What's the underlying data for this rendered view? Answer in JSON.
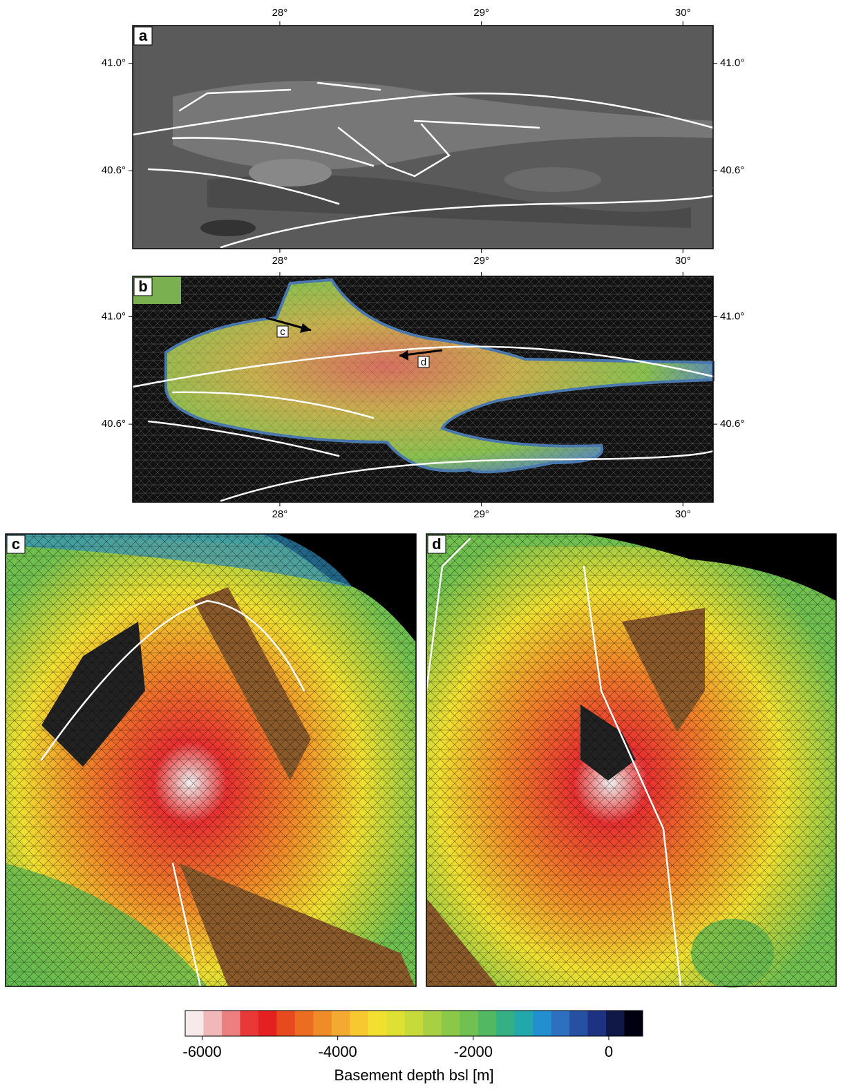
{
  "panels": [
    {
      "label": "a",
      "xlim": [
        27.27,
        30.15
      ],
      "ylim": [
        40.31,
        41.14
      ],
      "xticks": [
        {
          "value": 28,
          "label": "28°"
        },
        {
          "value": 29,
          "label": "29°"
        },
        {
          "value": 30,
          "label": "30°"
        }
      ],
      "yticks": [
        {
          "value": 41.0,
          "label": "41.0°"
        },
        {
          "value": 40.6,
          "label": "40.6°"
        }
      ]
    },
    {
      "label": "b",
      "xlim": [
        27.27,
        30.15
      ],
      "ylim": [
        40.31,
        41.15
      ],
      "xticks": [
        {
          "value": 28,
          "label": "28°"
        },
        {
          "value": 29,
          "label": "29°"
        },
        {
          "value": 30,
          "label": "30°"
        }
      ],
      "yticks": [
        {
          "value": 41.0,
          "label": "41.0°"
        },
        {
          "value": 40.6,
          "label": "40.6°"
        }
      ],
      "annotations": [
        "c",
        "d"
      ]
    },
    {
      "label": "c"
    },
    {
      "label": "d"
    }
  ],
  "colorbar": {
    "title": "Basement depth bsl [m]",
    "lim": [
      -6250,
      500
    ],
    "ticks": [
      -6000,
      -4000,
      -2000,
      0
    ],
    "colors": [
      "#f6eaea",
      "#f0b8b8",
      "#ec8080",
      "#e83838",
      "#e42020",
      "#e84a20",
      "#ec6c22",
      "#f08c28",
      "#f4aa30",
      "#f8c830",
      "#f2e030",
      "#dfe034",
      "#c6da3a",
      "#a8d042",
      "#8cc848",
      "#70c052",
      "#52b862",
      "#34b084",
      "#22a8aa",
      "#2290d0",
      "#2e70c0",
      "#2650a2",
      "#1e3282",
      "#101848",
      "#000010"
    ]
  }
}
